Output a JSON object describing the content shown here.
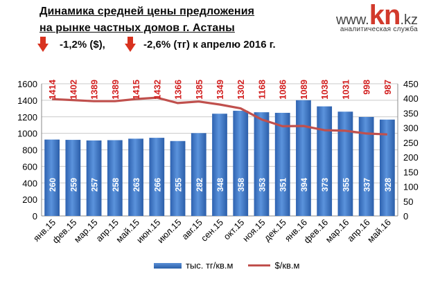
{
  "header": {
    "title_line1": "Динамика средней цены предложения",
    "title_line2": "на рынке частных домов г. Астаны",
    "change_usd": "-1,2% ($),",
    "change_tenge": "-2,6% (тг) к апрелю 2016 г."
  },
  "logo": {
    "prefix": "www.",
    "brand": "kn",
    "suffix": ".kz",
    "tagline": "аналитическая служба"
  },
  "colors": {
    "bar": "#3b73c4",
    "line": "#c0504d",
    "line_label": "#d21f1f",
    "arrow": "#d8321f"
  },
  "chart_data": {
    "type": "bar",
    "categories": [
      "янв.15",
      "фев.15",
      "мар.15",
      "апр.15",
      "май.15",
      "июн.15",
      "июл.15",
      "авг.15",
      "сен.15",
      "окт.15",
      "ноя.15",
      "дек.15",
      "янв.16",
      "фев.16",
      "мар.16",
      "апр.16",
      "май.16"
    ],
    "series": [
      {
        "name": "тыс. тг/кв.м",
        "type": "bar",
        "axis": "left",
        "values": [
          260,
          259,
          257,
          258,
          263,
          266,
          255,
          282,
          348,
          358,
          353,
          351,
          394,
          373,
          355,
          337,
          328
        ]
      },
      {
        "name": "$/кв.м",
        "type": "line",
        "axis": "right",
        "values": [
          1414,
          1402,
          1389,
          1389,
          1415,
          1432,
          1366,
          1385,
          1349,
          1302,
          1168,
          1086,
          1089,
          1038,
          1031,
          998,
          987
        ]
      }
    ],
    "y_left": {
      "min": 0,
      "max": 1600,
      "ticks": [
        0,
        200,
        400,
        600,
        800,
        1000,
        1200,
        1400,
        1600
      ]
    },
    "y_right": {
      "min": 0,
      "max": 450,
      "ticks": [
        0,
        50,
        100,
        150,
        200,
        250,
        300,
        350,
        400,
        450
      ]
    },
    "grid": true,
    "legend_position": "bottom"
  }
}
